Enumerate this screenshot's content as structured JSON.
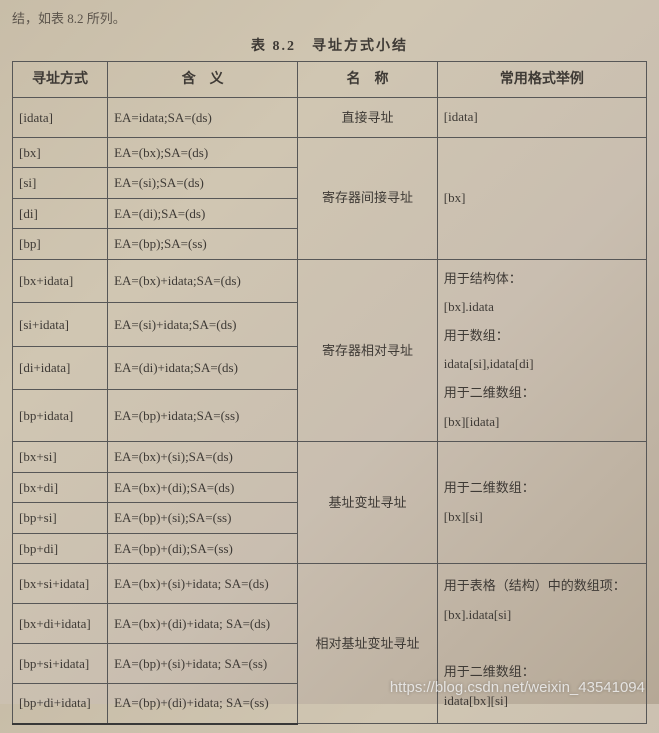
{
  "top_fragment": "结，如表 8.2 所列。",
  "caption": "表 8.2　寻址方式小结",
  "headers": {
    "mode": "寻址方式",
    "meaning": "含　义",
    "name": "名　称",
    "example": "常用格式举例"
  },
  "rows": {
    "r1": {
      "mode": "[idata]",
      "meaning": "EA=idata;SA=(ds)"
    },
    "name1": "直接寻址",
    "example1": "[idata]",
    "r2": {
      "mode": "[bx]",
      "meaning": "EA=(bx);SA=(ds)"
    },
    "r3": {
      "mode": "[si]",
      "meaning": "EA=(si);SA=(ds)"
    },
    "r4": {
      "mode": "[di]",
      "meaning": "EA=(di);SA=(ds)"
    },
    "r5": {
      "mode": "[bp]",
      "meaning": "EA=(bp);SA=(ss)"
    },
    "name2": "寄存器间接寻址",
    "example2": "[bx]",
    "r6": {
      "mode": "[bx+idata]",
      "meaning": "EA=(bx)+idata;SA=(ds)"
    },
    "r7": {
      "mode": "[si+idata]",
      "meaning": "EA=(si)+idata;SA=(ds)"
    },
    "r8": {
      "mode": "[di+idata]",
      "meaning": "EA=(di)+idata;SA=(ds)"
    },
    "r9": {
      "mode": "[bp+idata]",
      "meaning": "EA=(bp)+idata;SA=(ss)"
    },
    "name3": "寄存器相对寻址",
    "example3_l1": "用于结构体：",
    "example3_l2": "[bx].idata",
    "example3_l3": "用于数组：",
    "example3_l4": "idata[si],idata[di]",
    "example3_l5": "用于二维数组：",
    "example3_l6": "[bx][idata]",
    "r10": {
      "mode": "[bx+si]",
      "meaning": "EA=(bx)+(si);SA=(ds)"
    },
    "r11": {
      "mode": "[bx+di]",
      "meaning": "EA=(bx)+(di);SA=(ds)"
    },
    "r12": {
      "mode": "[bp+si]",
      "meaning": "EA=(bp)+(si);SA=(ss)"
    },
    "r13": {
      "mode": "[bp+di]",
      "meaning": "EA=(bp)+(di);SA=(ss)"
    },
    "name4": "基址变址寻址",
    "example4_l1": "用于二维数组：",
    "example4_l2": "[bx][si]",
    "r14": {
      "mode": "[bx+si+idata]",
      "meaning": "EA=(bx)+(si)+idata; SA=(ds)"
    },
    "r15": {
      "mode": "[bx+di+idata]",
      "meaning": "EA=(bx)+(di)+idata; SA=(ds)"
    },
    "r16": {
      "mode": "[bp+si+idata]",
      "meaning": "EA=(bp)+(si)+idata; SA=(ss)"
    },
    "r17": {
      "mode": "[bp+di+idata]",
      "meaning": "EA=(bp)+(di)+idata; SA=(ss)"
    },
    "name5": "相对基址变址寻址",
    "example5_l1": "用于表格（结构）中的数组项：",
    "example5_l2": "[bx].idata[si]",
    "example5_l3": "用于二维数组：",
    "example5_l4": "idata[bx][si]"
  },
  "watermark": "https://blog.csdn.net/weixin_43541094"
}
